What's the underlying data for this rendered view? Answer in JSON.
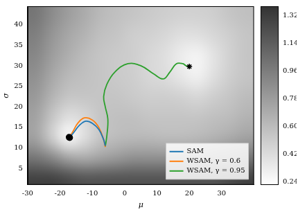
{
  "chart_data": {
    "type": "line",
    "x_label": "μ",
    "y_label": "σ",
    "xlim": [
      -30,
      40
    ],
    "xticks": [
      -30,
      -20,
      -10,
      0,
      10,
      20,
      30
    ],
    "ylim": [
      1,
      44.5
    ],
    "yticks": [
      5,
      10,
      15,
      20,
      25,
      30,
      35,
      40
    ],
    "grid": false,
    "legend": "lower right",
    "heatmap": {
      "x": [
        -27.5,
        -22.5,
        -17.5,
        -12.5,
        -7.5,
        -2.5,
        2.5,
        7.5,
        12.5,
        17.5,
        22.5,
        27.5,
        32.5,
        37.5
      ],
      "y": [
        2.5,
        7.5,
        12.5,
        17.5,
        22.5,
        27.5,
        32.5,
        37.5,
        42.5
      ],
      "z": [
        [
          1.3,
          1.3,
          1.25,
          1.2,
          1.2,
          1.2,
          1.2,
          1.2,
          1.2,
          1.2,
          1.2,
          1.2,
          1.25,
          1.3
        ],
        [
          1.0,
          0.9,
          0.75,
          0.7,
          0.75,
          0.8,
          0.85,
          0.85,
          0.85,
          0.85,
          0.85,
          0.9,
          0.95,
          1.0
        ],
        [
          0.75,
          0.5,
          0.26,
          0.4,
          0.55,
          0.6,
          0.62,
          0.62,
          0.6,
          0.6,
          0.62,
          0.65,
          0.7,
          0.75
        ],
        [
          0.75,
          0.55,
          0.4,
          0.45,
          0.55,
          0.58,
          0.58,
          0.55,
          0.55,
          0.55,
          0.55,
          0.58,
          0.6,
          0.65
        ],
        [
          0.8,
          0.65,
          0.55,
          0.55,
          0.55,
          0.55,
          0.52,
          0.5,
          0.5,
          0.48,
          0.45,
          0.5,
          0.55,
          0.6
        ],
        [
          0.85,
          0.72,
          0.62,
          0.58,
          0.55,
          0.52,
          0.5,
          0.45,
          0.42,
          0.35,
          0.3,
          0.4,
          0.5,
          0.55
        ],
        [
          0.9,
          0.78,
          0.68,
          0.6,
          0.55,
          0.52,
          0.5,
          0.45,
          0.4,
          0.32,
          0.28,
          0.38,
          0.48,
          0.55
        ],
        [
          0.95,
          0.82,
          0.72,
          0.65,
          0.58,
          0.55,
          0.5,
          0.48,
          0.45,
          0.4,
          0.4,
          0.45,
          0.5,
          0.55
        ],
        [
          1.0,
          0.88,
          0.78,
          0.7,
          0.62,
          0.58,
          0.55,
          0.52,
          0.5,
          0.48,
          0.48,
          0.5,
          0.55,
          0.58
        ]
      ]
    },
    "colorbar": {
      "range": [
        0.22,
        1.38
      ],
      "ticks": [
        0.24,
        0.42,
        {
          "value": 0.6,
          "label": "0.60"
        },
        0.78,
        0.96,
        1.14,
        1.32
      ]
    },
    "series": [
      {
        "name": "SAM",
        "color": "#1f77b4",
        "marker": "circle",
        "x": [
          -6,
          -6.5,
          -8,
          -10,
          -12,
          -14,
          -15.5,
          -16.5,
          -17
        ],
        "y": [
          10.5,
          12,
          14.5,
          16,
          16.5,
          15.5,
          14,
          13,
          12.5
        ]
      },
      {
        "name": "WSAM, γ = 0.6",
        "color": "#ff7f0e",
        "marker": "circle",
        "x": [
          -6,
          -6.5,
          -8,
          -10,
          -12.5,
          -14.5,
          -16,
          -16.8,
          -17.2
        ],
        "y": [
          10.2,
          12,
          15,
          16.8,
          17.3,
          16,
          14,
          13,
          12.6
        ]
      },
      {
        "name": "WSAM, γ = 0.95",
        "color": "#2ca02c",
        "marker": "star",
        "x": [
          -6,
          -5.5,
          -5.2,
          -6,
          -6.5,
          -5.5,
          -3,
          1,
          5,
          9,
          12,
          14,
          16,
          18,
          19,
          20
        ],
        "y": [
          10.3,
          13,
          17,
          20,
          22.5,
          25.5,
          28.5,
          30.5,
          30,
          28,
          26.8,
          28.5,
          30.5,
          30.5,
          30,
          29.8
        ]
      }
    ]
  }
}
